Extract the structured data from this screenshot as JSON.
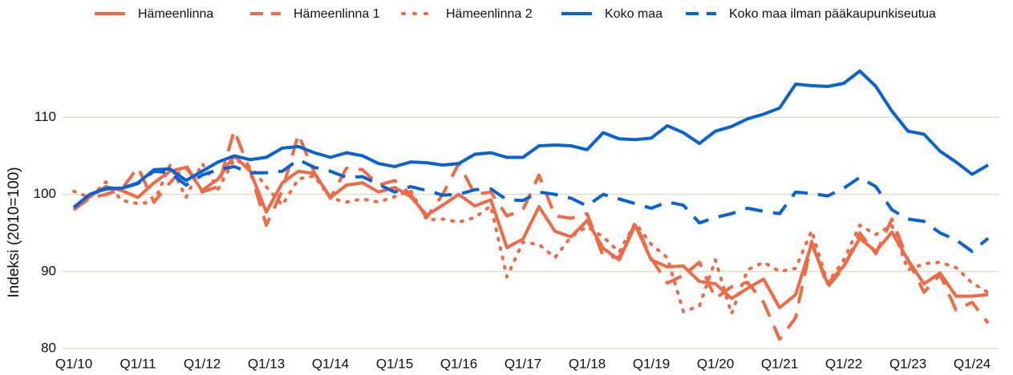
{
  "chart_data": {
    "type": "line",
    "y_label": "Indeksi (2010=100)",
    "categories": [
      "Q1/10",
      null,
      null,
      null,
      "Q1/11",
      null,
      null,
      null,
      "Q1/12",
      null,
      null,
      null,
      "Q1/13",
      null,
      null,
      null,
      "Q1/14",
      null,
      null,
      null,
      "Q1/15",
      null,
      null,
      null,
      "Q1/16",
      null,
      null,
      null,
      "Q1/17",
      null,
      null,
      null,
      "Q1/18",
      null,
      null,
      null,
      "Q1/19",
      null,
      null,
      null,
      "Q1/20",
      null,
      null,
      null,
      "Q1/21",
      null,
      null,
      null,
      "Q1/22",
      null,
      null,
      null,
      "Q1/23",
      null,
      null,
      null,
      "Q1/24",
      null
    ],
    "ylim": [
      80,
      117
    ],
    "yticks": [
      80,
      90,
      100,
      110
    ],
    "grid": true,
    "legend": "top",
    "series": [
      {
        "name": "Hämeenlinna",
        "color": "#ef6a45",
        "linestyle": "solid",
        "values": [
          98,
          99.7,
          101,
          100.5,
          99.6,
          101.5,
          103,
          103.5,
          100.5,
          102,
          105,
          103,
          97.7,
          101.5,
          103,
          102.7,
          99.6,
          101.2,
          101.5,
          100.3,
          100.9,
          99.7,
          97.3,
          98.6,
          100,
          98.5,
          99.3,
          93.1,
          94.2,
          98.4,
          95.2,
          94.5,
          96.6,
          93,
          91.5,
          96,
          91.5,
          90.6,
          90.7,
          88.7,
          88.4,
          86.5,
          87.8,
          89,
          85.3,
          87,
          93.6,
          88.4,
          90.7,
          94.3,
          92.6,
          95.1,
          91.5,
          88.4,
          89.8,
          86.8,
          86.8,
          87
        ]
      },
      {
        "name": "Hämeenlinna 1",
        "color": "#ef6a45",
        "linestyle": "dashed",
        "values": [
          98,
          99.5,
          100,
          100.7,
          103.5,
          99,
          101.5,
          103.8,
          100.3,
          101,
          108.3,
          103,
          96,
          100.5,
          107.8,
          102.8,
          99.5,
          103.4,
          103.2,
          101.2,
          101.8,
          100,
          97,
          100,
          104,
          100,
          100.3,
          97.2,
          98,
          102.5,
          97.2,
          96.9,
          97.5,
          92,
          91.8,
          96.3,
          91.7,
          88.5,
          89.5,
          91.2,
          86.5,
          88,
          88.6,
          86,
          81.2,
          84,
          93.9,
          88,
          90.5,
          95,
          92.3,
          96.8,
          91.5,
          87.3,
          89.6,
          85,
          86,
          83.3
        ]
      },
      {
        "name": "Hämeenlinna 2",
        "color": "#ef6a45",
        "linestyle": "dotted",
        "values": [
          100.4,
          99.6,
          101.6,
          99.2,
          98.8,
          99,
          103.8,
          99.6,
          104,
          100.7,
          104.5,
          103.6,
          101,
          98.6,
          102,
          102.4,
          99.5,
          99,
          99.4,
          99,
          99.7,
          100.5,
          96.7,
          96.8,
          96.4,
          97,
          98.5,
          89.3,
          93.8,
          93.5,
          91.8,
          94.5,
          95.8,
          94.5,
          92.5,
          96.3,
          93.5,
          91.8,
          84.8,
          85.5,
          91.5,
          84.5,
          90.2,
          91.2,
          90,
          90.4,
          95.3,
          88.5,
          91.5,
          96,
          94.8,
          96,
          90.2,
          91,
          91.2,
          90.5,
          88.5,
          87.3
        ]
      },
      {
        "name": "Koko maa",
        "color": "#0a63d6",
        "linestyle": "solid",
        "values": [
          98.3,
          100,
          100.8,
          100.8,
          101.5,
          103.2,
          103.3,
          101.8,
          103,
          104.2,
          105,
          104.5,
          104.8,
          106,
          106.2,
          105.4,
          104.8,
          105.4,
          105,
          104,
          103.6,
          104.2,
          104.1,
          103.8,
          104,
          105.2,
          105.4,
          104.8,
          104.8,
          106.3,
          106.4,
          106.3,
          105.8,
          108,
          107.2,
          107.1,
          107.3,
          108.9,
          108,
          106.6,
          108.2,
          108.8,
          109.8,
          110.4,
          111.2,
          114.3,
          114.1,
          114,
          114.4,
          116,
          114,
          110.8,
          108.2,
          107.8,
          105.6,
          104.2,
          102.6,
          103.8
        ]
      },
      {
        "name": "Koko maa ilman pääkaupunkiseutua",
        "color": "#0a63d6",
        "linestyle": "dashed",
        "values": [
          98.3,
          100,
          100.7,
          100.8,
          101.4,
          103,
          102.8,
          101.2,
          102.5,
          103.2,
          103.6,
          102.8,
          102.8,
          103,
          104.5,
          103.5,
          103,
          102.2,
          102.3,
          101.3,
          100.3,
          101,
          100.5,
          99.9,
          100,
          100.6,
          100.7,
          99.3,
          99.2,
          100.3,
          100,
          99.5,
          98.5,
          100,
          99.4,
          98.8,
          98.2,
          99,
          98.6,
          96.3,
          97,
          97.5,
          98.2,
          97.8,
          97.5,
          100.3,
          100.1,
          99.8,
          100.8,
          102.2,
          101,
          98,
          96.8,
          96.5,
          95,
          94.1,
          92.6,
          94.3
        ]
      }
    ]
  }
}
